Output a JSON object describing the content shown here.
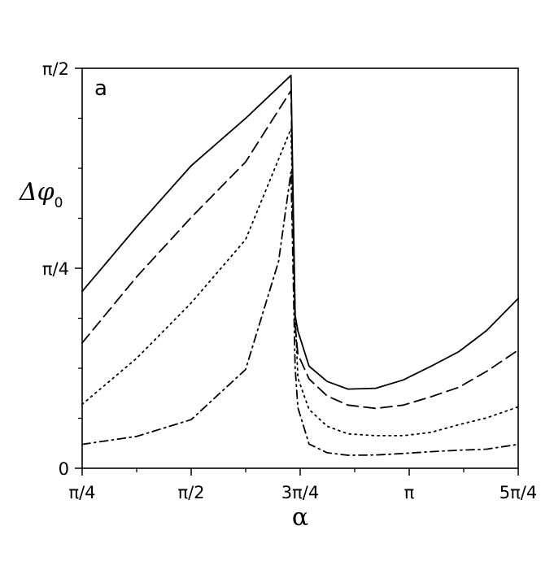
{
  "chart_data": {
    "type": "line",
    "panel_label": "a",
    "xlabel": "α",
    "ylabel": {
      "main": "Δφ",
      "subscript": "0"
    },
    "xlim": [
      0.7853981634,
      3.926990817
    ],
    "ylim": [
      0,
      1.5707963268
    ],
    "xticks": [
      {
        "value": 0.7853981634,
        "label": "π/4"
      },
      {
        "value": 1.5707963268,
        "label": "π/2"
      },
      {
        "value": 2.3561944902,
        "label": "3π/4"
      },
      {
        "value": 3.1415926536,
        "label": "π"
      },
      {
        "value": 3.926990817,
        "label": "5π/4"
      }
    ],
    "yticks": [
      {
        "value": 0,
        "label": "0"
      },
      {
        "value": 0.7853981634,
        "label": "π/4"
      },
      {
        "value": 1.5707963268,
        "label": "π/2"
      }
    ],
    "series": [
      {
        "style": "solid",
        "points": [
          [
            0.785,
            0.694
          ],
          [
            1.178,
            0.948
          ],
          [
            1.571,
            1.188
          ],
          [
            1.963,
            1.374
          ],
          [
            2.29,
            1.543
          ],
          [
            2.32,
            0.601
          ],
          [
            2.34,
            0.539
          ],
          [
            2.42,
            0.401
          ],
          [
            2.55,
            0.341
          ],
          [
            2.7,
            0.311
          ],
          [
            2.9,
            0.314
          ],
          [
            3.1,
            0.347
          ],
          [
            3.3,
            0.401
          ],
          [
            3.5,
            0.458
          ],
          [
            3.7,
            0.541
          ],
          [
            3.927,
            0.667
          ]
        ]
      },
      {
        "style": "dashed",
        "points": [
          [
            0.785,
            0.492
          ],
          [
            1.178,
            0.752
          ],
          [
            1.571,
            0.985
          ],
          [
            1.963,
            1.203
          ],
          [
            2.29,
            1.483
          ],
          [
            2.32,
            0.561
          ],
          [
            2.34,
            0.448
          ],
          [
            2.42,
            0.351
          ],
          [
            2.55,
            0.284
          ],
          [
            2.7,
            0.248
          ],
          [
            2.9,
            0.235
          ],
          [
            3.1,
            0.248
          ],
          [
            3.3,
            0.281
          ],
          [
            3.5,
            0.318
          ],
          [
            3.7,
            0.381
          ],
          [
            3.927,
            0.464
          ]
        ]
      },
      {
        "style": "dotted",
        "points": [
          [
            0.785,
            0.251
          ],
          [
            1.178,
            0.432
          ],
          [
            1.571,
            0.649
          ],
          [
            1.963,
            0.898
          ],
          [
            2.29,
            1.333
          ],
          [
            2.32,
            0.601
          ],
          [
            2.34,
            0.354
          ],
          [
            2.42,
            0.231
          ],
          [
            2.55,
            0.165
          ],
          [
            2.7,
            0.135
          ],
          [
            2.9,
            0.128
          ],
          [
            3.1,
            0.128
          ],
          [
            3.3,
            0.141
          ],
          [
            3.5,
            0.171
          ],
          [
            3.7,
            0.198
          ],
          [
            3.927,
            0.241
          ]
        ]
      },
      {
        "style": "dashdot",
        "points": [
          [
            0.785,
            0.094
          ],
          [
            1.178,
            0.125
          ],
          [
            1.571,
            0.191
          ],
          [
            1.963,
            0.388
          ],
          [
            2.2,
            0.812
          ],
          [
            2.29,
            1.164
          ],
          [
            2.32,
            0.395
          ],
          [
            2.34,
            0.238
          ],
          [
            2.42,
            0.095
          ],
          [
            2.55,
            0.061
          ],
          [
            2.7,
            0.051
          ],
          [
            2.9,
            0.052
          ],
          [
            3.1,
            0.058
          ],
          [
            3.3,
            0.065
          ],
          [
            3.5,
            0.071
          ],
          [
            3.7,
            0.075
          ],
          [
            3.927,
            0.094
          ]
        ]
      }
    ]
  }
}
